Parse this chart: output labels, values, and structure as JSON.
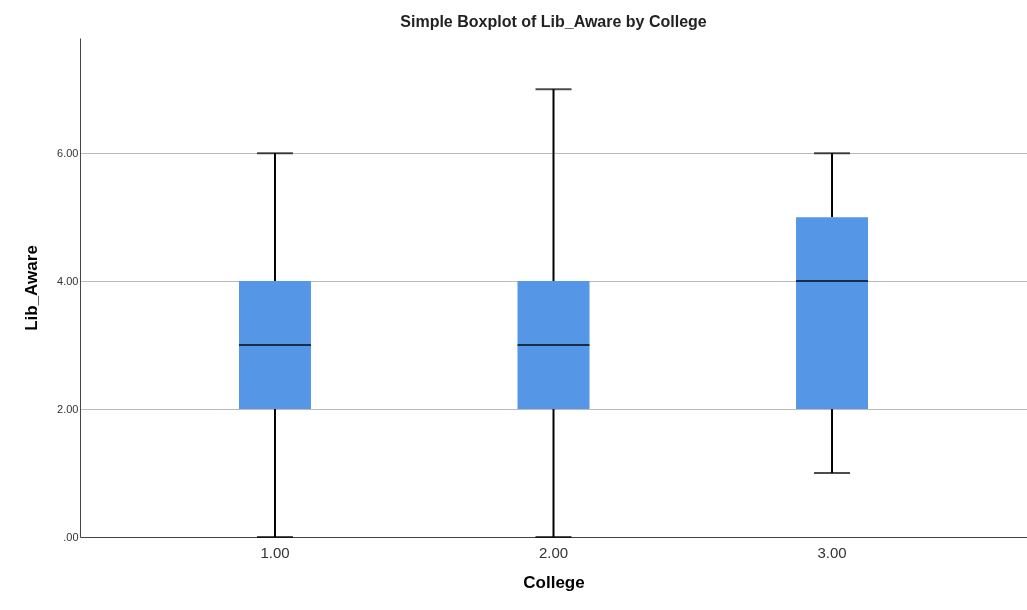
{
  "chart_data": {
    "type": "box",
    "title": "Simple Boxplot of Lib_Aware by College",
    "xlabel": "College",
    "ylabel": "Lib_Aware",
    "categories": [
      "1.00",
      "2.00",
      "3.00"
    ],
    "boxes": [
      {
        "low": 0,
        "q1": 2,
        "median": 3,
        "q3": 4,
        "high": 6
      },
      {
        "low": 0,
        "q1": 2,
        "median": 3,
        "q3": 4,
        "high": 7
      },
      {
        "low": 1,
        "q1": 2,
        "median": 4,
        "q3": 5,
        "high": 6
      }
    ],
    "color": "#5596e6",
    "ylim": [
      0,
      7.8
    ],
    "yticks": [
      {
        "value": 0,
        "label": ".00"
      },
      {
        "value": 2,
        "label": "2.00"
      },
      {
        "value": 4,
        "label": "4.00"
      },
      {
        "value": 6,
        "label": "6.00"
      }
    ],
    "grid": "y"
  }
}
